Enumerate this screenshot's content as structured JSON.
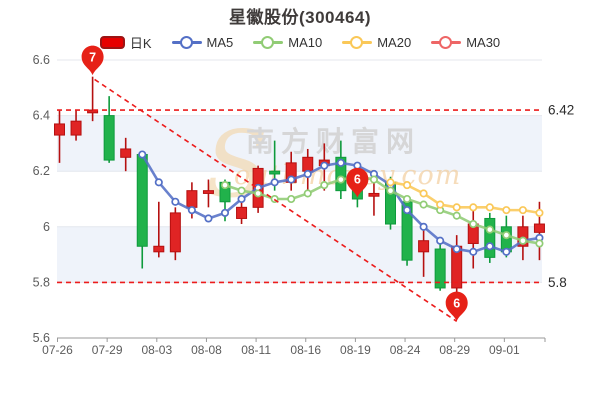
{
  "title": "星徽股份(300464)",
  "legend": [
    {
      "label": "日K",
      "color": "#e60000",
      "type": "candle"
    },
    {
      "label": "MA5",
      "color": "#5470c6",
      "type": "line"
    },
    {
      "label": "MA10",
      "color": "#91cc75",
      "type": "line"
    },
    {
      "label": "MA20",
      "color": "#fac858",
      "type": "line"
    },
    {
      "label": "MA30",
      "color": "#ee6666",
      "type": "line"
    }
  ],
  "watermark": {
    "s": "S",
    "cn": "南方财富网",
    "en": "outhmoney.com"
  },
  "chart_data": {
    "type": "candlestick",
    "title": "星徽股份(300464)",
    "ylim": [
      5.6,
      6.6
    ],
    "yticks": [
      6.6,
      6.4,
      6.2,
      6.0,
      5.8,
      5.6
    ],
    "ytick_labels": [
      "6.6",
      "6.4",
      "6.2",
      "6",
      "5.8",
      "5.6"
    ],
    "xtick_labels": [
      "07-26",
      "07-29",
      "08-03",
      "08-08",
      "08-11",
      "08-16",
      "08-19",
      "08-24",
      "08-29",
      "09-01"
    ],
    "xtick_candle_index": [
      0,
      3,
      6,
      9,
      12,
      15,
      18,
      21,
      24,
      27
    ],
    "candles": [
      {
        "o": 6.33,
        "c": 6.37,
        "h": 6.42,
        "l": 6.23
      },
      {
        "o": 6.33,
        "c": 6.38,
        "h": 6.42,
        "l": 6.31
      },
      {
        "o": 6.41,
        "c": 6.42,
        "h": 6.54,
        "l": 6.38
      },
      {
        "o": 6.4,
        "c": 6.24,
        "h": 6.47,
        "l": 6.23
      },
      {
        "o": 6.25,
        "c": 6.28,
        "h": 6.32,
        "l": 6.2
      },
      {
        "o": 6.26,
        "c": 5.93,
        "h": 6.27,
        "l": 5.85
      },
      {
        "o": 5.91,
        "c": 5.93,
        "h": 6.09,
        "l": 5.89
      },
      {
        "o": 5.91,
        "c": 6.05,
        "h": 6.07,
        "l": 5.88
      },
      {
        "o": 6.07,
        "c": 6.13,
        "h": 6.16,
        "l": 6.03
      },
      {
        "o": 6.12,
        "c": 6.13,
        "h": 6.17,
        "l": 6.07
      },
      {
        "o": 6.16,
        "c": 6.09,
        "h": 6.17,
        "l": 6.02
      },
      {
        "o": 6.03,
        "c": 6.07,
        "h": 6.09,
        "l": 6.01
      },
      {
        "o": 6.07,
        "c": 6.21,
        "h": 6.22,
        "l": 6.05
      },
      {
        "o": 6.2,
        "c": 6.19,
        "h": 6.31,
        "l": 6.13
      },
      {
        "o": 6.16,
        "c": 6.23,
        "h": 6.27,
        "l": 6.13
      },
      {
        "o": 6.2,
        "c": 6.25,
        "h": 6.28,
        "l": 6.13
      },
      {
        "o": 6.22,
        "c": 6.24,
        "h": 6.3,
        "l": 6.13
      },
      {
        "o": 6.25,
        "c": 6.13,
        "h": 6.31,
        "l": 6.1
      },
      {
        "o": 6.19,
        "c": 6.1,
        "h": 6.2,
        "l": 6.07
      },
      {
        "o": 6.11,
        "c": 6.12,
        "h": 6.17,
        "l": 6.04
      },
      {
        "o": 6.16,
        "c": 6.01,
        "h": 6.18,
        "l": 5.99
      },
      {
        "o": 6.09,
        "c": 5.88,
        "h": 6.1,
        "l": 5.86
      },
      {
        "o": 5.91,
        "c": 5.95,
        "h": 5.99,
        "l": 5.82
      },
      {
        "o": 5.92,
        "c": 5.78,
        "h": 5.95,
        "l": 5.77
      },
      {
        "o": 5.78,
        "c": 5.93,
        "h": 5.97,
        "l": 5.7
      },
      {
        "o": 5.94,
        "c": 6.01,
        "h": 6.06,
        "l": 5.85
      },
      {
        "o": 6.03,
        "c": 5.89,
        "h": 6.05,
        "l": 5.87
      },
      {
        "o": 6.0,
        "c": 5.91,
        "h": 6.04,
        "l": 5.89
      },
      {
        "o": 5.93,
        "c": 6.0,
        "h": 6.04,
        "l": 5.88
      },
      {
        "o": 5.98,
        "c": 6.01,
        "h": 6.09,
        "l": 5.88
      }
    ],
    "series": [
      {
        "name": "MA5",
        "color": "#5470c6",
        "start": 5,
        "values": [
          6.26,
          6.16,
          6.09,
          6.06,
          6.03,
          6.05,
          6.1,
          6.14,
          6.16,
          6.17,
          6.19,
          6.22,
          6.23,
          6.22,
          6.19,
          6.15,
          6.06,
          6.0,
          5.95,
          5.92,
          5.91,
          5.93,
          5.91,
          5.95,
          5.96
        ]
      },
      {
        "name": "MA10",
        "color": "#91cc75",
        "start": 10,
        "values": [
          6.15,
          6.13,
          6.12,
          6.1,
          6.1,
          6.12,
          6.15,
          6.17,
          6.18,
          6.17,
          6.13,
          6.1,
          6.08,
          6.06,
          6.04,
          6.01,
          5.99,
          5.97,
          5.95,
          5.94
        ]
      },
      {
        "name": "MA20",
        "color": "#fac858",
        "start": 20,
        "values": [
          6.16,
          6.15,
          6.12,
          6.08,
          6.07,
          6.07,
          6.07,
          6.06,
          6.06,
          6.05
        ]
      },
      {
        "name": "MA30",
        "color": "#ee6666",
        "start": 30,
        "values": []
      }
    ],
    "reference_lines": [
      {
        "value": 6.42,
        "label": "6.42"
      },
      {
        "value": 5.8,
        "label": "5.8"
      }
    ],
    "trendline": {
      "from_index": 2,
      "from_value": 6.53,
      "to_index": 24,
      "to_value": 5.66
    },
    "markers": [
      {
        "text": "7",
        "index": 2,
        "tip_value": 6.545
      },
      {
        "text": "6",
        "index": 18,
        "tip_value": 6.105
      },
      {
        "text": "6",
        "index": 24,
        "tip_value": 5.66
      }
    ],
    "colors": {
      "up_fill": "#e02424",
      "up_stroke": "#b51010",
      "down_fill": "#21b24b",
      "down_stroke": "#0e9a3c",
      "dashed": "#ec1c1c",
      "band": "#eff3fa",
      "grid": "#e4e7ee",
      "axis": "#999999",
      "tick_text": "#5c5c5c",
      "ref_text": "#2b2b2b",
      "pin": "#e62117",
      "watermark_gray": "#d2d2d2",
      "watermark_orange": "#f2cfa0"
    },
    "legend_position": "top",
    "grid": true
  }
}
